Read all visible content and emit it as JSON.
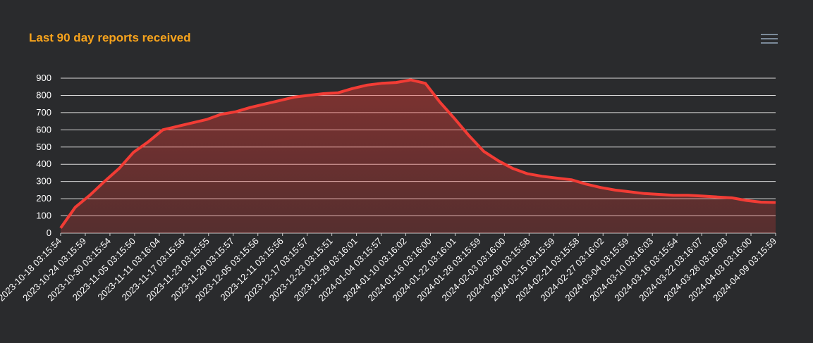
{
  "title": "Last 90 day reports received",
  "menu_icon": "hamburger-menu-icon",
  "colors": {
    "background": "#2a2b2d",
    "title": "#f7a31c",
    "line": "#f23c35",
    "grid": "#d9d9d9",
    "text": "#ffffff",
    "menu": "#7b8a99"
  },
  "chart_data": {
    "type": "area",
    "title": "Last 90 day reports received",
    "xlabel": "",
    "ylabel": "",
    "ylim": [
      0,
      900
    ],
    "yticks": [
      0,
      100,
      200,
      300,
      400,
      500,
      600,
      700,
      800,
      900
    ],
    "grid": true,
    "legend": false,
    "x_tick_labels": [
      "2023-10-18 03:15:54",
      "2023-10-24 03:15:59",
      "2023-10-30 03:15:54",
      "2023-11-05 03:15:50",
      "2023-11-11 03:16:04",
      "2023-11-17 03:15:56",
      "2023-11-23 03:15:55",
      "2023-11-29 03:15:57",
      "2023-12-05 03:15:56",
      "2023-12-11 03:15:56",
      "2023-12-17 03:15:57",
      "2023-12-23 03:15:51",
      "2023-12-29 03:16:01",
      "2024-01-04 03:15:57",
      "2024-01-10 03:16:02",
      "2024-01-16 03:16:00",
      "2024-01-22 03:16:01",
      "2024-01-28 03:15:59",
      "2024-02-03 03:16:00",
      "2024-02-09 03:15:58",
      "2024-02-15 03:15:59",
      "2024-02-21 03:15:58",
      "2024-02-27 03:16:02",
      "2024-03-04 03:15:59",
      "2024-03-10 03:16:03",
      "2024-03-16 03:15:54",
      "2024-03-22 03:16:07",
      "2024-03-28 03:16:03",
      "2024-04-03 03:16:00",
      "2024-04-09 03:15:59"
    ],
    "series": [
      {
        "values": [
          30,
          150,
          220,
          300,
          375,
          470,
          530,
          600,
          620,
          640,
          660,
          690,
          705,
          730,
          750,
          770,
          790,
          800,
          810,
          815,
          840,
          860,
          870,
          875,
          890,
          870,
          760,
          665,
          565,
          475,
          420,
          375,
          345,
          330,
          320,
          310,
          285,
          265,
          250,
          240,
          230,
          225,
          220,
          220,
          215,
          210,
          205,
          190,
          180,
          178
        ]
      }
    ]
  }
}
